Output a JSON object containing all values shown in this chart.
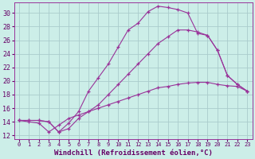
{
  "background_color": "#cceee8",
  "line_color": "#993399",
  "grid_color": "#aacccc",
  "xlabel": "Windchill (Refroidissement éolien,°C)",
  "xlim": [
    -0.5,
    23.5
  ],
  "ylim": [
    11.5,
    31.5
  ],
  "yticks": [
    12,
    14,
    16,
    18,
    20,
    22,
    24,
    26,
    28,
    30
  ],
  "xticks": [
    0,
    1,
    2,
    3,
    4,
    5,
    6,
    7,
    8,
    9,
    10,
    11,
    12,
    13,
    14,
    15,
    16,
    17,
    18,
    19,
    20,
    21,
    22,
    23
  ],
  "line1_x": [
    0,
    1,
    2,
    3,
    4,
    5,
    6,
    7,
    8,
    9,
    10,
    11,
    12,
    13,
    14,
    15,
    16,
    17,
    18,
    19,
    20,
    21,
    22,
    23
  ],
  "line1_y": [
    14.2,
    14.2,
    14.2,
    14.0,
    12.5,
    13.8,
    15.5,
    18.5,
    20.5,
    22.5,
    25.0,
    27.5,
    28.5,
    30.2,
    31.0,
    30.8,
    30.5,
    30.0,
    27.0,
    26.7,
    24.5,
    20.8,
    19.5,
    18.5
  ],
  "line2_x": [
    0,
    1,
    2,
    3,
    4,
    5,
    6,
    7,
    8,
    9,
    10,
    11,
    12,
    13,
    14,
    15,
    16,
    17,
    18,
    19,
    20,
    21,
    22,
    23
  ],
  "line2_y": [
    14.2,
    14.2,
    14.2,
    14.0,
    12.5,
    13.0,
    14.5,
    15.5,
    16.5,
    18.0,
    19.5,
    21.0,
    22.5,
    24.0,
    25.5,
    26.5,
    27.5,
    27.5,
    27.2,
    26.7,
    24.5,
    20.8,
    19.5,
    18.5
  ],
  "line3_x": [
    0,
    1,
    2,
    3,
    4,
    5,
    6,
    7,
    8,
    9,
    10,
    11,
    12,
    13,
    14,
    15,
    16,
    17,
    18,
    19,
    20,
    21,
    22,
    23
  ],
  "line3_y": [
    14.2,
    14.0,
    13.8,
    12.5,
    13.5,
    14.5,
    15.0,
    15.5,
    16.0,
    16.5,
    17.0,
    17.5,
    18.0,
    18.5,
    19.0,
    19.2,
    19.5,
    19.7,
    19.8,
    19.8,
    19.5,
    19.3,
    19.2,
    18.5
  ]
}
